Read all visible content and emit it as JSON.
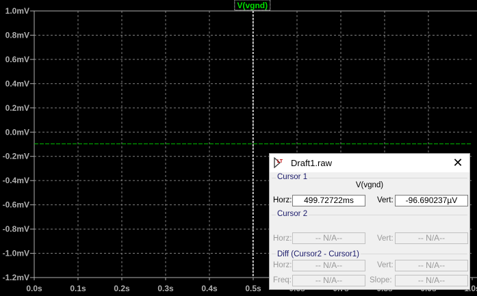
{
  "chart_data": {
    "type": "line",
    "legend": [
      "V(vgnd)"
    ],
    "x_ticks": [
      "0.0s",
      "0.1s",
      "0.2s",
      "0.3s",
      "0.4s",
      "0.5s",
      "0.6s",
      "0.7s",
      "0.8s",
      "0.9s",
      "1.0s"
    ],
    "y_ticks": [
      "1.0mV",
      "0.8mV",
      "0.6mV",
      "0.4mV",
      "0.2mV",
      "0.0mV",
      "-0.2mV",
      "-0.4mV",
      "-0.6mV",
      "-0.8mV",
      "-1.0mV",
      "-1.2mV"
    ],
    "xlim": [
      0,
      1.0
    ],
    "ylim": [
      -1.2,
      1.0
    ],
    "grid": true,
    "series": [
      {
        "name": "V(vgnd)",
        "x": [
          0,
          1.0
        ],
        "y": [
          -0.0967,
          -0.0967
        ],
        "color": "#00c000"
      }
    ],
    "cursor_x": 0.4997,
    "colors": {
      "background": "#000000",
      "axis": "#b0b0b0",
      "grid": "#808080",
      "legend_text": "#00e000"
    }
  },
  "dialog": {
    "title": "Draft1.raw",
    "cursor1": {
      "label": "Cursor 1",
      "signal": "V(vgnd)",
      "horz_label": "Horz:",
      "horz": "499.72722ms",
      "vert_label": "Vert:",
      "vert": "-96.690237µV"
    },
    "cursor2": {
      "label": "Cursor 2",
      "horz_label": "Horz:",
      "horz": "-- N/A--",
      "vert_label": "Vert:",
      "vert": "-- N/A--"
    },
    "diff": {
      "label": "Diff (Cursor2 - Cursor1)",
      "horz_label": "Horz:",
      "horz": "-- N/A--",
      "vert_label": "Vert:",
      "vert": "-- N/A--",
      "freq_label": "Freq:",
      "freq": "-- N/A--",
      "slope_label": "Slope:",
      "slope": "-- N/A--"
    }
  }
}
